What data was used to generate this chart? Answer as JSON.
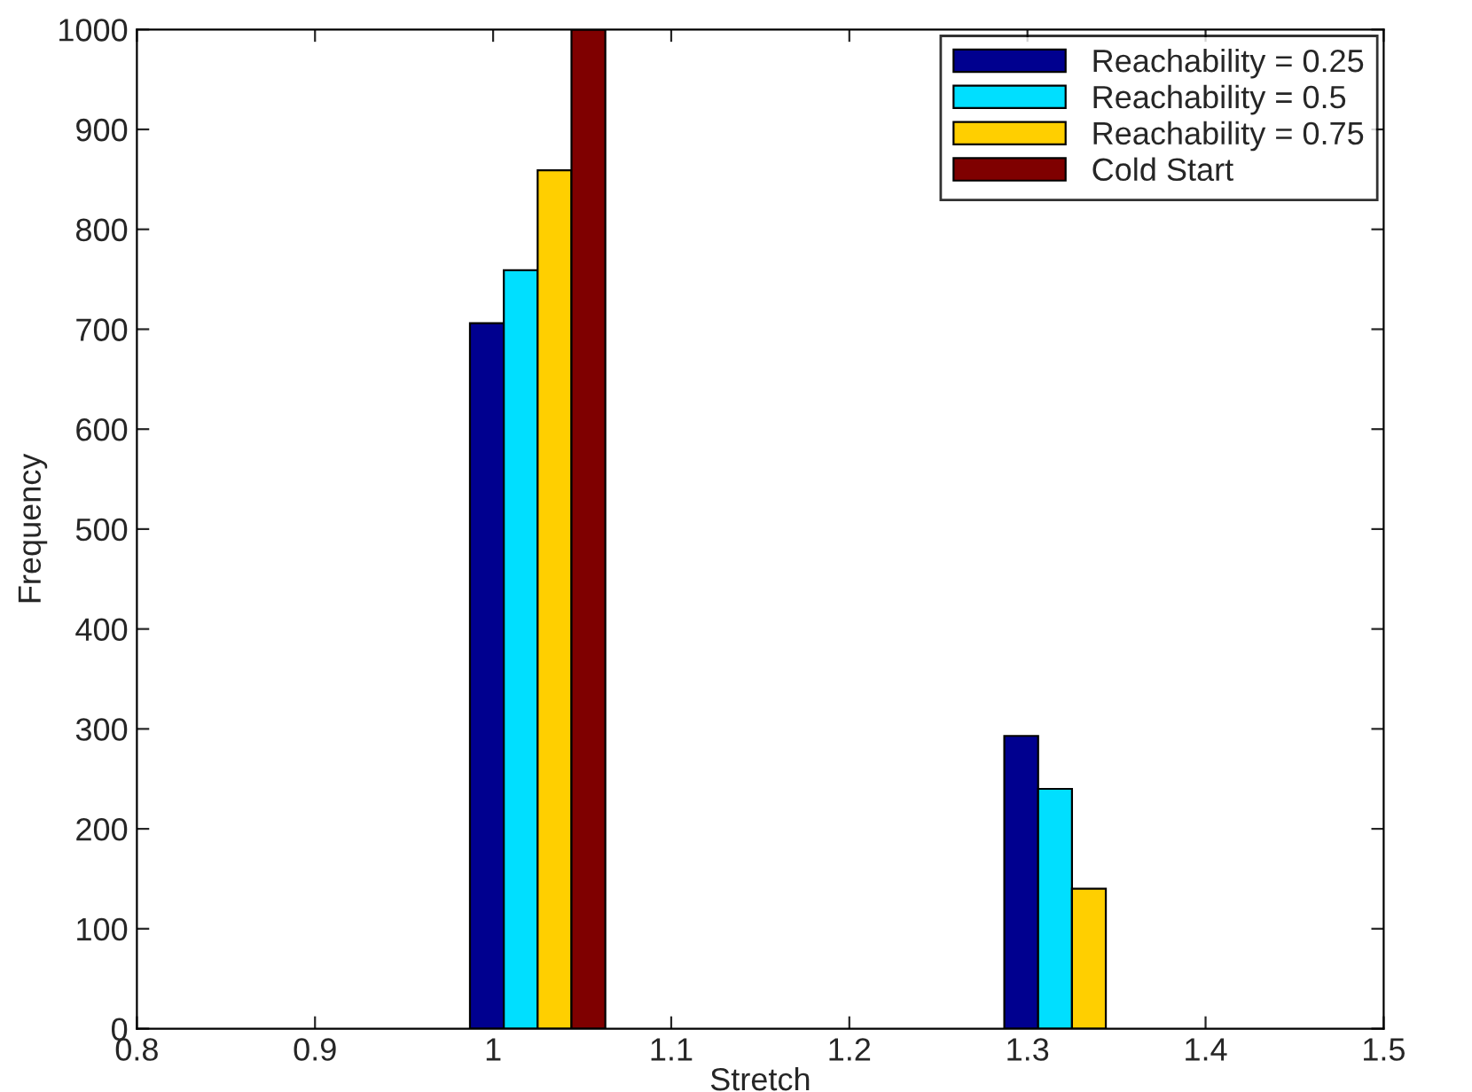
{
  "chart_data": {
    "type": "bar",
    "xlabel": "Stretch",
    "ylabel": "Frequency",
    "x": [
      1.025,
      1.325
    ],
    "series": [
      {
        "name": "Reachability = 0.25",
        "color": "#00008f",
        "values": [
          706,
          293
        ]
      },
      {
        "name": "Reachability = 0.5",
        "color": "#00dfff",
        "values": [
          759,
          240
        ]
      },
      {
        "name": "Reachability = 0.75",
        "color": "#ffcf00",
        "values": [
          859,
          140
        ]
      },
      {
        "name": "Cold Start",
        "color": "#7f0000",
        "values": [
          1000,
          null
        ]
      }
    ],
    "xlim": [
      0.8,
      1.5
    ],
    "xticks": [
      0.8,
      0.9,
      1,
      1.1,
      1.2,
      1.3,
      1.4,
      1.5
    ],
    "ylim": [
      0,
      1000
    ],
    "yticks": [
      0,
      100,
      200,
      300,
      400,
      500,
      600,
      700,
      800,
      900,
      1000
    ],
    "grid": false,
    "legend": "top right"
  }
}
